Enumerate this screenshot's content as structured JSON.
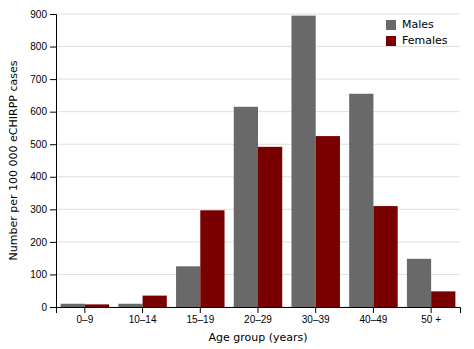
{
  "chart_data": {
    "type": "bar",
    "categories": [
      "0–9",
      "10–14",
      "15–19",
      "20–29",
      "30–39",
      "40–49",
      "50 +"
    ],
    "series": [
      {
        "name": "Males",
        "color": "#696969",
        "values": [
          10,
          10,
          125,
          615,
          895,
          655,
          148
        ]
      },
      {
        "name": "Females",
        "color": "#7a0000",
        "values": [
          8,
          35,
          297,
          492,
          525,
          310,
          48
        ]
      }
    ],
    "xlabel": "Age group (years)",
    "ylabel": "Number per 100 000 eCHIRPP cases",
    "ylim": [
      0,
      900
    ],
    "yticks": [
      0,
      100,
      200,
      300,
      400,
      500,
      600,
      700,
      800,
      900
    ],
    "grid": true,
    "legend": "upper right"
  }
}
